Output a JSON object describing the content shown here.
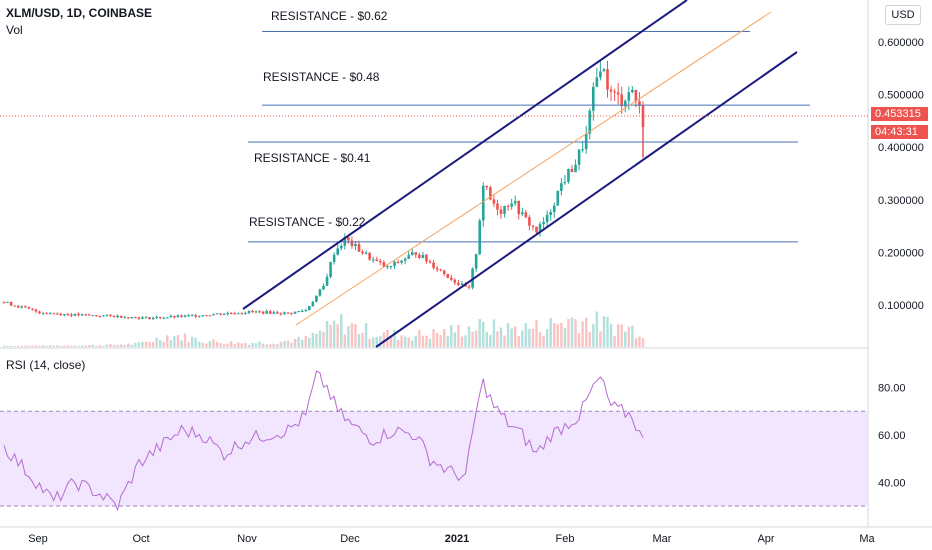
{
  "header": {
    "symbol": "XLM/USD, 1D, COINBASE",
    "volume_label": "Vol",
    "currency_button": "USD"
  },
  "price_tag": {
    "current": "0.453315",
    "countdown": "04:43:31"
  },
  "colors": {
    "up": "#26a69a",
    "down": "#ef5350",
    "channel": "#1a1a7e",
    "midline": "#f5a25d",
    "resistance": "#4a72b8",
    "rsi_line": "#b36bd0",
    "rsi_band": "#f1e6fd"
  },
  "chart_data": [
    {
      "type": "candlestick",
      "title": "XLM/USD, 1D, COINBASE",
      "x_axis": {
        "ticks": [
          "Sep",
          "Oct",
          "Nov",
          "Dec",
          "2021",
          "Feb",
          "Mar",
          "Apr",
          "Ma"
        ]
      },
      "y_axis": {
        "ticks": [
          "0.600000",
          "0.500000",
          "0.400000",
          "0.300000",
          "0.200000",
          "0.100000"
        ],
        "range": [
          0.02,
          0.68
        ]
      },
      "annotations": [
        {
          "label": "RESISTANCE - $0.62",
          "value": 0.62
        },
        {
          "label": "RESISTANCE - $0.48",
          "value": 0.48
        },
        {
          "label": "RESISTANCE - $0.41",
          "value": 0.41
        },
        {
          "label": "RESISTANCE - $0.22",
          "value": 0.22
        }
      ],
      "price_anchors": [
        [
          0,
          0.105
        ],
        [
          10,
          0.086
        ],
        [
          20,
          0.081
        ],
        [
          30,
          0.079
        ],
        [
          40,
          0.075
        ],
        [
          50,
          0.078
        ],
        [
          60,
          0.083
        ],
        [
          70,
          0.087
        ],
        [
          80,
          0.084
        ],
        [
          85,
          0.09
        ],
        [
          90,
          0.135
        ],
        [
          93,
          0.2
        ],
        [
          96,
          0.225
        ],
        [
          100,
          0.205
        ],
        [
          104,
          0.185
        ],
        [
          108,
          0.17
        ],
        [
          112,
          0.185
        ],
        [
          116,
          0.2
        ],
        [
          120,
          0.18
        ],
        [
          124,
          0.16
        ],
        [
          128,
          0.14
        ],
        [
          131,
          0.13
        ],
        [
          133,
          0.2
        ],
        [
          135,
          0.33
        ],
        [
          137,
          0.3
        ],
        [
          140,
          0.28
        ],
        [
          143,
          0.3
        ],
        [
          146,
          0.27
        ],
        [
          150,
          0.24
        ],
        [
          153,
          0.265
        ],
        [
          157,
          0.33
        ],
        [
          161,
          0.37
        ],
        [
          164,
          0.42
        ],
        [
          166,
          0.5
        ],
        [
          168,
          0.56
        ],
        [
          171,
          0.5
        ],
        [
          174,
          0.49
        ],
        [
          177,
          0.51
        ],
        [
          180,
          0.45
        ]
      ],
      "volume_profile": [
        0.03,
        0.03,
        0.04,
        0.05,
        0.08,
        0.3,
        0.15,
        0.1,
        0.12,
        0.2,
        0.6,
        0.35,
        0.28,
        0.35,
        0.5,
        0.45,
        0.5,
        0.7,
        0.55,
        0.4
      ]
    },
    {
      "type": "line",
      "title": "RSI (14, close)",
      "y_axis": {
        "ticks": [
          "80.00",
          "60.00",
          "40.00"
        ],
        "range": [
          22,
          95
        ]
      },
      "band": [
        30,
        70
      ],
      "rsi_anchors": [
        [
          0,
          55
        ],
        [
          8,
          42
        ],
        [
          14,
          32
        ],
        [
          20,
          40
        ],
        [
          26,
          36
        ],
        [
          32,
          30
        ],
        [
          38,
          48
        ],
        [
          44,
          55
        ],
        [
          50,
          62
        ],
        [
          56,
          60
        ],
        [
          62,
          52
        ],
        [
          68,
          58
        ],
        [
          74,
          60
        ],
        [
          80,
          62
        ],
        [
          85,
          68
        ],
        [
          88,
          85
        ],
        [
          91,
          80
        ],
        [
          94,
          70
        ],
        [
          98,
          64
        ],
        [
          104,
          58
        ],
        [
          110,
          62
        ],
        [
          116,
          60
        ],
        [
          120,
          50
        ],
        [
          125,
          45
        ],
        [
          130,
          42
        ],
        [
          133,
          70
        ],
        [
          135,
          82
        ],
        [
          138,
          72
        ],
        [
          142,
          65
        ],
        [
          146,
          60
        ],
        [
          150,
          52
        ],
        [
          154,
          60
        ],
        [
          158,
          64
        ],
        [
          162,
          68
        ],
        [
          166,
          80
        ],
        [
          168,
          84
        ],
        [
          171,
          72
        ],
        [
          174,
          70
        ],
        [
          177,
          68
        ],
        [
          180,
          57
        ]
      ]
    }
  ]
}
